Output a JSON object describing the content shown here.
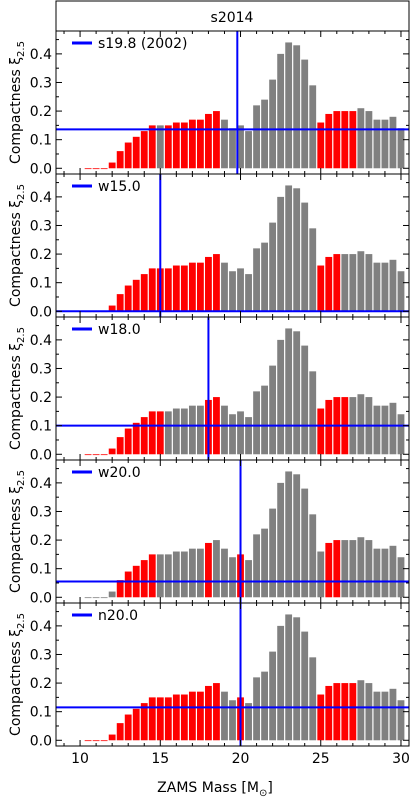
{
  "figure": {
    "title": "s2014",
    "xlabel": "ZAMS Mass [M",
    "xlabel_sub": "⊙",
    "xlabel_end": "]",
    "ylabel_main": "Compactness ξ",
    "ylabel_sub": "2.5"
  },
  "colors": {
    "exploding": "#ff0000",
    "nonexploding": "#808080",
    "reference": "#0000ff"
  },
  "chart_data": [
    {
      "type": "bar",
      "panel": 1,
      "legend": "s19.8 (2002)",
      "reference_mass": 19.8,
      "reference_compactness": 0.136,
      "xlim": [
        8.5,
        30.5
      ],
      "ylim": [
        -0.02,
        0.48
      ],
      "xticks": [
        10,
        15,
        20,
        25,
        30
      ],
      "yticks": [
        0.0,
        0.1,
        0.2,
        0.3,
        0.4
      ],
      "x": [
        10.5,
        11.0,
        11.5,
        12.0,
        12.5,
        13.0,
        13.5,
        14.0,
        14.5,
        15.0,
        15.5,
        16.0,
        16.5,
        17.0,
        17.5,
        18.0,
        18.5,
        19.0,
        19.5,
        20.0,
        20.5,
        21.0,
        21.5,
        22.0,
        22.5,
        23.0,
        23.5,
        24.0,
        24.5,
        25.0,
        25.5,
        26.0,
        26.5,
        27.0,
        27.5,
        28.0,
        28.5,
        29.0,
        29.5,
        30.0
      ],
      "y": [
        0.0,
        0.0,
        0.0,
        0.02,
        0.06,
        0.09,
        0.11,
        0.13,
        0.15,
        0.15,
        0.15,
        0.16,
        0.16,
        0.17,
        0.17,
        0.19,
        0.2,
        0.17,
        0.14,
        0.15,
        0.13,
        0.22,
        0.24,
        0.31,
        0.4,
        0.44,
        0.43,
        0.38,
        0.29,
        0.16,
        0.19,
        0.2,
        0.2,
        0.2,
        0.21,
        0.2,
        0.17,
        0.17,
        0.18,
        0.14
      ],
      "explodes": [
        true,
        true,
        true,
        true,
        true,
        true,
        true,
        true,
        true,
        false,
        true,
        true,
        true,
        true,
        true,
        true,
        true,
        false,
        false,
        false,
        false,
        false,
        false,
        false,
        false,
        false,
        false,
        false,
        false,
        true,
        true,
        true,
        true,
        true,
        false,
        false,
        false,
        false,
        false,
        false
      ]
    },
    {
      "type": "bar",
      "panel": 2,
      "legend": "w15.0",
      "reference_mass": 15.0,
      "reference_compactness": 0.0,
      "xlim": [
        8.5,
        30.5
      ],
      "ylim": [
        -0.02,
        0.48
      ],
      "xticks": [
        10,
        15,
        20,
        25,
        30
      ],
      "yticks": [
        0.0,
        0.1,
        0.2,
        0.3,
        0.4
      ],
      "x": [
        10.5,
        11.0,
        11.5,
        12.0,
        12.5,
        13.0,
        13.5,
        14.0,
        14.5,
        15.0,
        15.5,
        16.0,
        16.5,
        17.0,
        17.5,
        18.0,
        18.5,
        19.0,
        19.5,
        20.0,
        20.5,
        21.0,
        21.5,
        22.0,
        22.5,
        23.0,
        23.5,
        24.0,
        24.5,
        25.0,
        25.5,
        26.0,
        26.5,
        27.0,
        27.5,
        28.0,
        28.5,
        29.0,
        29.5,
        30.0
      ],
      "y": [
        0.0,
        0.0,
        0.0,
        0.02,
        0.06,
        0.09,
        0.11,
        0.13,
        0.15,
        0.15,
        0.15,
        0.16,
        0.16,
        0.17,
        0.17,
        0.19,
        0.2,
        0.17,
        0.14,
        0.15,
        0.13,
        0.22,
        0.24,
        0.31,
        0.4,
        0.44,
        0.43,
        0.38,
        0.29,
        0.16,
        0.19,
        0.2,
        0.2,
        0.2,
        0.21,
        0.2,
        0.17,
        0.17,
        0.18,
        0.14
      ],
      "explodes": [
        true,
        true,
        true,
        true,
        true,
        true,
        true,
        true,
        true,
        true,
        true,
        true,
        true,
        true,
        true,
        true,
        true,
        false,
        false,
        false,
        false,
        false,
        false,
        false,
        false,
        false,
        false,
        false,
        false,
        true,
        true,
        true,
        false,
        false,
        false,
        false,
        false,
        false,
        false,
        false
      ]
    },
    {
      "type": "bar",
      "panel": 3,
      "legend": "w18.0",
      "reference_mass": 18.0,
      "reference_compactness": 0.1,
      "xlim": [
        8.5,
        30.5
      ],
      "ylim": [
        -0.02,
        0.48
      ],
      "xticks": [
        10,
        15,
        20,
        25,
        30
      ],
      "yticks": [
        0.0,
        0.1,
        0.2,
        0.3,
        0.4
      ],
      "x": [
        10.5,
        11.0,
        11.5,
        12.0,
        12.5,
        13.0,
        13.5,
        14.0,
        14.5,
        15.0,
        15.5,
        16.0,
        16.5,
        17.0,
        17.5,
        18.0,
        18.5,
        19.0,
        19.5,
        20.0,
        20.5,
        21.0,
        21.5,
        22.0,
        22.5,
        23.0,
        23.5,
        24.0,
        24.5,
        25.0,
        25.5,
        26.0,
        26.5,
        27.0,
        27.5,
        28.0,
        28.5,
        29.0,
        29.5,
        30.0
      ],
      "y": [
        0.0,
        0.0,
        0.0,
        0.02,
        0.06,
        0.09,
        0.11,
        0.13,
        0.15,
        0.15,
        0.15,
        0.16,
        0.16,
        0.17,
        0.17,
        0.19,
        0.2,
        0.17,
        0.14,
        0.15,
        0.13,
        0.22,
        0.24,
        0.31,
        0.4,
        0.44,
        0.43,
        0.38,
        0.29,
        0.16,
        0.19,
        0.2,
        0.2,
        0.2,
        0.21,
        0.2,
        0.17,
        0.17,
        0.18,
        0.14
      ],
      "explodes": [
        true,
        true,
        true,
        true,
        true,
        true,
        true,
        true,
        true,
        true,
        false,
        false,
        false,
        false,
        false,
        true,
        true,
        false,
        false,
        false,
        false,
        false,
        false,
        false,
        false,
        false,
        false,
        false,
        false,
        true,
        true,
        true,
        true,
        false,
        false,
        false,
        false,
        false,
        false,
        false
      ]
    },
    {
      "type": "bar",
      "panel": 4,
      "legend": "w20.0",
      "reference_mass": 20.0,
      "reference_compactness": 0.055,
      "xlim": [
        8.5,
        30.5
      ],
      "ylim": [
        -0.02,
        0.48
      ],
      "xticks": [
        10,
        15,
        20,
        25,
        30
      ],
      "yticks": [
        0.0,
        0.1,
        0.2,
        0.3,
        0.4
      ],
      "x": [
        10.5,
        11.0,
        11.5,
        12.0,
        12.5,
        13.0,
        13.5,
        14.0,
        14.5,
        15.0,
        15.5,
        16.0,
        16.5,
        17.0,
        17.5,
        18.0,
        18.5,
        19.0,
        19.5,
        20.0,
        20.5,
        21.0,
        21.5,
        22.0,
        22.5,
        23.0,
        23.5,
        24.0,
        24.5,
        25.0,
        25.5,
        26.0,
        26.5,
        27.0,
        27.5,
        28.0,
        28.5,
        29.0,
        29.5,
        30.0
      ],
      "y": [
        0.0,
        0.0,
        0.0,
        0.02,
        0.06,
        0.09,
        0.11,
        0.13,
        0.15,
        0.15,
        0.15,
        0.16,
        0.16,
        0.17,
        0.17,
        0.19,
        0.2,
        0.17,
        0.14,
        0.15,
        0.13,
        0.22,
        0.24,
        0.31,
        0.4,
        0.44,
        0.43,
        0.38,
        0.29,
        0.16,
        0.19,
        0.2,
        0.2,
        0.2,
        0.21,
        0.2,
        0.17,
        0.17,
        0.18,
        0.14
      ],
      "explodes": [
        false,
        false,
        false,
        false,
        true,
        true,
        true,
        true,
        true,
        false,
        false,
        false,
        false,
        false,
        false,
        true,
        false,
        false,
        false,
        true,
        false,
        false,
        false,
        false,
        false,
        false,
        false,
        false,
        false,
        false,
        true,
        true,
        false,
        false,
        false,
        false,
        false,
        false,
        false,
        false
      ]
    },
    {
      "type": "bar",
      "panel": 5,
      "legend": "n20.0",
      "reference_mass": 20.0,
      "reference_compactness": 0.115,
      "xlim": [
        8.5,
        30.5
      ],
      "ylim": [
        -0.02,
        0.48
      ],
      "xticks": [
        10,
        15,
        20,
        25,
        30
      ],
      "yticks": [
        0.0,
        0.1,
        0.2,
        0.3,
        0.4
      ],
      "x": [
        10.5,
        11.0,
        11.5,
        12.0,
        12.5,
        13.0,
        13.5,
        14.0,
        14.5,
        15.0,
        15.5,
        16.0,
        16.5,
        17.0,
        17.5,
        18.0,
        18.5,
        19.0,
        19.5,
        20.0,
        20.5,
        21.0,
        21.5,
        22.0,
        22.5,
        23.0,
        23.5,
        24.0,
        24.5,
        25.0,
        25.5,
        26.0,
        26.5,
        27.0,
        27.5,
        28.0,
        28.5,
        29.0,
        29.5,
        30.0
      ],
      "y": [
        0.0,
        0.0,
        0.0,
        0.02,
        0.06,
        0.09,
        0.11,
        0.13,
        0.15,
        0.15,
        0.15,
        0.16,
        0.16,
        0.17,
        0.17,
        0.19,
        0.2,
        0.17,
        0.14,
        0.15,
        0.13,
        0.22,
        0.24,
        0.31,
        0.4,
        0.44,
        0.43,
        0.38,
        0.29,
        0.16,
        0.19,
        0.2,
        0.2,
        0.2,
        0.21,
        0.2,
        0.17,
        0.17,
        0.18,
        0.14
      ],
      "explodes": [
        true,
        true,
        true,
        true,
        true,
        true,
        true,
        true,
        true,
        true,
        true,
        true,
        true,
        true,
        true,
        true,
        true,
        false,
        false,
        true,
        false,
        false,
        false,
        false,
        false,
        false,
        false,
        false,
        false,
        true,
        true,
        true,
        true,
        true,
        false,
        false,
        false,
        false,
        false,
        false
      ]
    }
  ]
}
